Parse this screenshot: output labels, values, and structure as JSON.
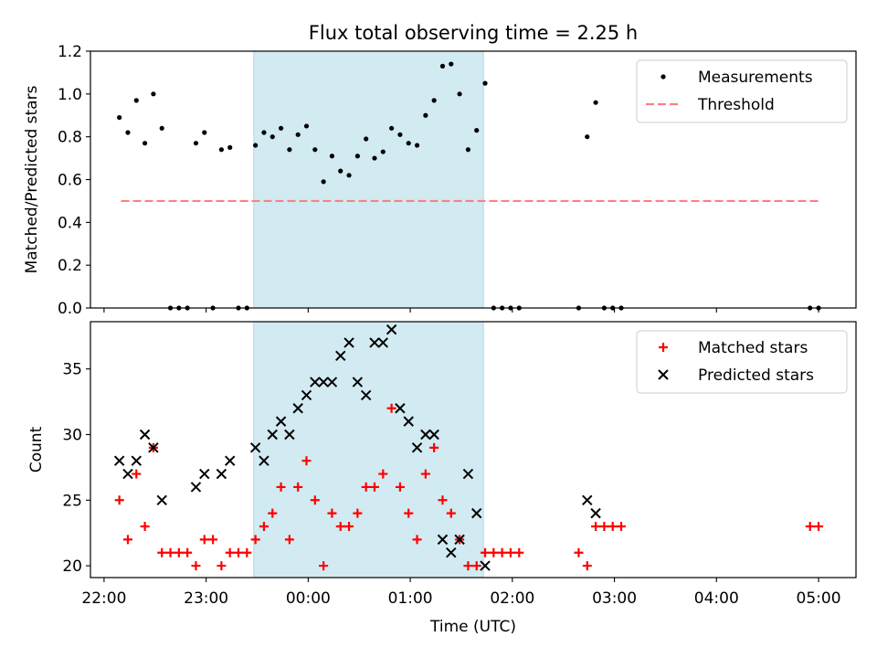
{
  "title": "Flux total observing time = 2.25 h",
  "colors": {
    "shade": "#add8e6",
    "measurement": "#000000",
    "threshold": "#ff7f7f",
    "matched": "#ff0000",
    "predicted": "#000000"
  },
  "chart_data": [
    {
      "type": "scatter",
      "ylabel": "Matched/Predicted stars",
      "ylim": [
        0,
        1.2
      ],
      "yticks": [
        0,
        0.2,
        0.4,
        0.6,
        0.8,
        1.0,
        1.2
      ],
      "ytick_labels": [
        "0.0",
        "0.2",
        "0.4",
        "0.6",
        "0.8",
        "1.0",
        "1.2"
      ],
      "xlim": [
        "21:52",
        "05:22"
      ],
      "shaded_span": [
        "23:28",
        "01:43"
      ],
      "legend": {
        "position": "top-right",
        "entries": [
          "Measurements",
          "Threshold"
        ]
      },
      "threshold": {
        "name": "Threshold",
        "y": 0.5,
        "x": [
          "22:10",
          "05:00"
        ]
      },
      "series": [
        {
          "name": "Measurements",
          "marker": "dot",
          "points": [
            [
              "22:09",
              0.89
            ],
            [
              "22:14",
              0.82
            ],
            [
              "22:19",
              0.97
            ],
            [
              "22:24",
              0.77
            ],
            [
              "22:29",
              1.0
            ],
            [
              "22:34",
              0.84
            ],
            [
              "22:39",
              0.0
            ],
            [
              "22:44",
              0.0
            ],
            [
              "22:49",
              0.0
            ],
            [
              "22:54",
              0.77
            ],
            [
              "22:59",
              0.82
            ],
            [
              "23:04",
              0.0
            ],
            [
              "23:09",
              0.74
            ],
            [
              "23:14",
              0.75
            ],
            [
              "23:19",
              0.0
            ],
            [
              "23:24",
              0.0
            ],
            [
              "23:29",
              0.76
            ],
            [
              "23:34",
              0.82
            ],
            [
              "23:39",
              0.8
            ],
            [
              "23:44",
              0.84
            ],
            [
              "23:49",
              0.74
            ],
            [
              "23:54",
              0.81
            ],
            [
              "23:59",
              0.85
            ],
            [
              "00:04",
              0.74
            ],
            [
              "00:09",
              0.59
            ],
            [
              "00:14",
              0.71
            ],
            [
              "00:19",
              0.64
            ],
            [
              "00:24",
              0.62
            ],
            [
              "00:29",
              0.71
            ],
            [
              "00:34",
              0.79
            ],
            [
              "00:39",
              0.7
            ],
            [
              "00:44",
              0.73
            ],
            [
              "00:49",
              0.84
            ],
            [
              "00:54",
              0.81
            ],
            [
              "00:59",
              0.77
            ],
            [
              "01:04",
              0.76
            ],
            [
              "01:09",
              0.9
            ],
            [
              "01:14",
              0.97
            ],
            [
              "01:19",
              1.13
            ],
            [
              "01:24",
              1.14
            ],
            [
              "01:29",
              1.0
            ],
            [
              "01:34",
              0.74
            ],
            [
              "01:39",
              0.83
            ],
            [
              "01:44",
              1.05
            ],
            [
              "01:49",
              0.0
            ],
            [
              "01:54",
              0.0
            ],
            [
              "01:59",
              0.0
            ],
            [
              "02:04",
              0.0
            ],
            [
              "02:39",
              0.0
            ],
            [
              "02:44",
              0.8
            ],
            [
              "02:49",
              0.96
            ],
            [
              "02:54",
              0.0
            ],
            [
              "02:59",
              0.0
            ],
            [
              "03:04",
              0.0
            ],
            [
              "04:55",
              0.0
            ],
            [
              "05:00",
              0.0
            ]
          ]
        }
      ]
    },
    {
      "type": "scatter",
      "xlabel": "Time (UTC)",
      "ylabel": "Count",
      "ylim": [
        19.1,
        38.6
      ],
      "yticks": [
        20,
        25,
        30,
        35
      ],
      "ytick_labels": [
        "20",
        "25",
        "30",
        "35"
      ],
      "xlim": [
        "21:52",
        "05:22"
      ],
      "xticks": [
        "22:00",
        "23:00",
        "00:00",
        "01:00",
        "02:00",
        "03:00",
        "04:00",
        "05:00"
      ],
      "shaded_span": [
        "23:28",
        "01:43"
      ],
      "legend": {
        "position": "top-right",
        "entries": [
          "Matched stars",
          "Predicted stars"
        ]
      },
      "series": [
        {
          "name": "Matched stars",
          "marker": "plus",
          "points": [
            [
              "22:09",
              25
            ],
            [
              "22:14",
              22
            ],
            [
              "22:19",
              27
            ],
            [
              "22:24",
              23
            ],
            [
              "22:29",
              29
            ],
            [
              "22:34",
              21
            ],
            [
              "22:39",
              21
            ],
            [
              "22:44",
              21
            ],
            [
              "22:49",
              21
            ],
            [
              "22:54",
              20
            ],
            [
              "22:59",
              22
            ],
            [
              "23:04",
              22
            ],
            [
              "23:09",
              20
            ],
            [
              "23:14",
              21
            ],
            [
              "23:19",
              21
            ],
            [
              "23:24",
              21
            ],
            [
              "23:29",
              22
            ],
            [
              "23:34",
              23
            ],
            [
              "23:39",
              24
            ],
            [
              "23:44",
              26
            ],
            [
              "23:49",
              22
            ],
            [
              "23:54",
              26
            ],
            [
              "23:59",
              28
            ],
            [
              "00:04",
              25
            ],
            [
              "00:09",
              20
            ],
            [
              "00:14",
              24
            ],
            [
              "00:19",
              23
            ],
            [
              "00:24",
              23
            ],
            [
              "00:29",
              24
            ],
            [
              "00:34",
              26
            ],
            [
              "00:39",
              26
            ],
            [
              "00:44",
              27
            ],
            [
              "00:49",
              32
            ],
            [
              "00:54",
              26
            ],
            [
              "00:59",
              24
            ],
            [
              "01:04",
              22
            ],
            [
              "01:09",
              27
            ],
            [
              "01:14",
              29
            ],
            [
              "01:19",
              25
            ],
            [
              "01:24",
              24
            ],
            [
              "01:29",
              22
            ],
            [
              "01:34",
              20
            ],
            [
              "01:39",
              20
            ],
            [
              "01:44",
              21
            ],
            [
              "01:49",
              21
            ],
            [
              "01:54",
              21
            ],
            [
              "01:59",
              21
            ],
            [
              "02:04",
              21
            ],
            [
              "02:39",
              21
            ],
            [
              "02:44",
              20
            ],
            [
              "02:49",
              23
            ],
            [
              "02:54",
              23
            ],
            [
              "02:59",
              23
            ],
            [
              "03:04",
              23
            ],
            [
              "04:55",
              23
            ],
            [
              "05:00",
              23
            ]
          ]
        },
        {
          "name": "Predicted stars",
          "marker": "x",
          "points": [
            [
              "22:09",
              28
            ],
            [
              "22:14",
              27
            ],
            [
              "22:19",
              28
            ],
            [
              "22:24",
              30
            ],
            [
              "22:29",
              29
            ],
            [
              "22:34",
              25
            ],
            [
              "22:54",
              26
            ],
            [
              "22:59",
              27
            ],
            [
              "23:09",
              27
            ],
            [
              "23:14",
              28
            ],
            [
              "23:29",
              29
            ],
            [
              "23:34",
              28
            ],
            [
              "23:39",
              30
            ],
            [
              "23:44",
              31
            ],
            [
              "23:49",
              30
            ],
            [
              "23:54",
              32
            ],
            [
              "23:59",
              33
            ],
            [
              "00:04",
              34
            ],
            [
              "00:09",
              34
            ],
            [
              "00:14",
              34
            ],
            [
              "00:19",
              36
            ],
            [
              "00:24",
              37
            ],
            [
              "00:29",
              34
            ],
            [
              "00:34",
              33
            ],
            [
              "00:39",
              37
            ],
            [
              "00:44",
              37
            ],
            [
              "00:49",
              38
            ],
            [
              "00:54",
              32
            ],
            [
              "00:59",
              31
            ],
            [
              "01:04",
              29
            ],
            [
              "01:09",
              30
            ],
            [
              "01:14",
              30
            ],
            [
              "01:19",
              22
            ],
            [
              "01:24",
              21
            ],
            [
              "01:29",
              22
            ],
            [
              "01:34",
              27
            ],
            [
              "01:39",
              24
            ],
            [
              "01:44",
              20
            ],
            [
              "02:44",
              25
            ],
            [
              "02:49",
              24
            ]
          ]
        }
      ]
    }
  ]
}
